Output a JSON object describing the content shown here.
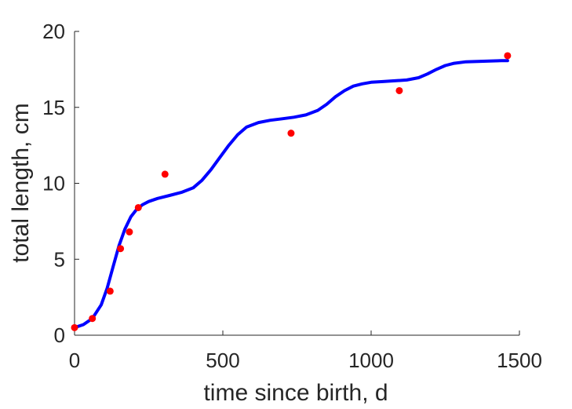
{
  "chart_data": {
    "type": "scatter",
    "xlabel": "time since birth, d",
    "ylabel": "total length, cm",
    "xlim": [
      0,
      1500
    ],
    "ylim": [
      0,
      20
    ],
    "xticks": [
      0,
      500,
      1000,
      1500
    ],
    "yticks": [
      0,
      5,
      10,
      15,
      20
    ],
    "grid": false,
    "series": [
      {
        "kind": "points",
        "color": "#ff0000",
        "x": [
          0,
          60,
          120,
          155,
          185,
          215,
          305,
          730,
          1095,
          1460
        ],
        "y": [
          0.5,
          1.1,
          2.9,
          5.7,
          6.8,
          8.4,
          10.6,
          13.3,
          16.1,
          18.4
        ]
      },
      {
        "kind": "line",
        "color": "#0000ff",
        "x": [
          0,
          30,
          60,
          90,
          110,
          130,
          150,
          170,
          190,
          210,
          230,
          250,
          280,
          320,
          360,
          400,
          430,
          460,
          490,
          520,
          550,
          580,
          620,
          660,
          700,
          740,
          780,
          820,
          850,
          880,
          910,
          940,
          970,
          1000,
          1040,
          1080,
          1120,
          1160,
          1190,
          1220,
          1250,
          1280,
          1320,
          1360,
          1400,
          1440,
          1460
        ],
        "y": [
          0.5,
          0.7,
          1.1,
          2.0,
          3.1,
          4.5,
          5.9,
          7.0,
          7.8,
          8.3,
          8.6,
          8.8,
          9.0,
          9.2,
          9.4,
          9.7,
          10.2,
          10.9,
          11.7,
          12.5,
          13.2,
          13.7,
          14.0,
          14.15,
          14.25,
          14.35,
          14.5,
          14.8,
          15.2,
          15.7,
          16.1,
          16.4,
          16.55,
          16.65,
          16.7,
          16.75,
          16.8,
          16.95,
          17.2,
          17.5,
          17.75,
          17.9,
          18.0,
          18.02,
          18.05,
          18.07,
          18.08
        ]
      }
    ]
  }
}
